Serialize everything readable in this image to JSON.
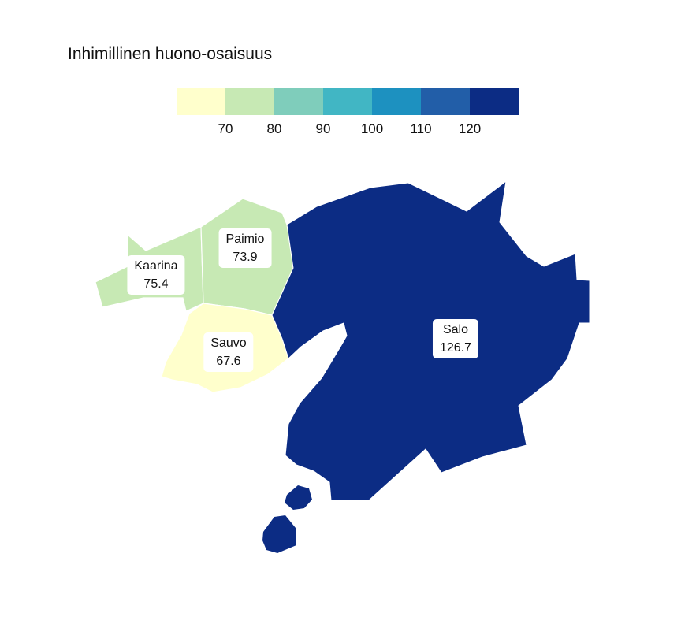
{
  "map": {
    "title": "Inhimillinen huono-osaisuus",
    "legend": {
      "colors": [
        "#ffffcc",
        "#c7e9b4",
        "#7fcdbb",
        "#41b6c4",
        "#1d91c0",
        "#225ea8",
        "#0c2c84"
      ],
      "ticks": [
        "70",
        "80",
        "90",
        "100",
        "110",
        "120"
      ]
    },
    "regions": [
      {
        "name": "Kaarina",
        "value": "75.4",
        "fill": "#c7e9b4"
      },
      {
        "name": "Paimio",
        "value": "73.9",
        "fill": "#c7e9b4"
      },
      {
        "name": "Sauvo",
        "value": "67.6",
        "fill": "#ffffcc"
      },
      {
        "name": "Salo",
        "value": "126.7",
        "fill": "#0c2c84"
      }
    ]
  }
}
